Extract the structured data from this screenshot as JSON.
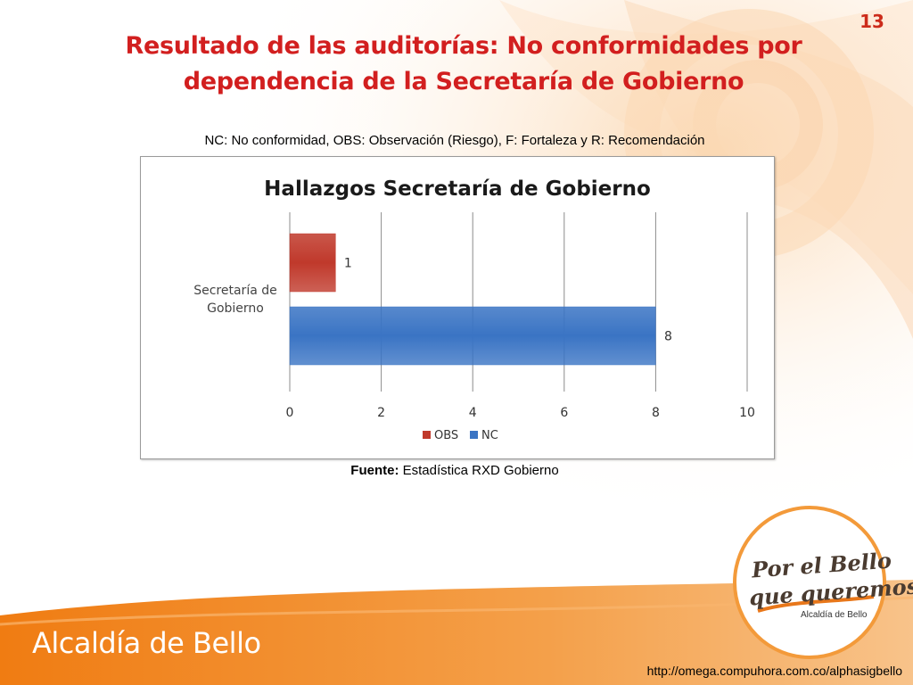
{
  "slide": {
    "number": "13",
    "title_line1": "Resultado de las auditorías: No conformidades por",
    "title_line2": "dependencia de la Secretaría de Gobierno",
    "note": "NC: No conformidad, OBS: Observación (Riesgo), F: Fortaleza y R: Recomendación",
    "source_label": "Fuente:",
    "source_text": " Estadística RXD Gobierno",
    "footer_org": "Alcaldía de Bello",
    "footer_url": "http://omega.compuhora.com.co/alphasigbello",
    "logo_line1": "Por el Bello",
    "logo_line2": "que queremos",
    "logo_sub": "Alcaldía de Bello"
  },
  "colors": {
    "title": "#d21f1f",
    "obs": "#c0392b",
    "nc": "#3a74c4",
    "orange": "#f08a1c"
  },
  "chart_data": {
    "type": "bar",
    "orientation": "horizontal",
    "title": "Hallazgos Secretaría de Gobierno",
    "categories": [
      "Secretaría de Gobierno"
    ],
    "series": [
      {
        "name": "OBS",
        "values": [
          1
        ],
        "color": "#c0392b"
      },
      {
        "name": "NC",
        "values": [
          8
        ],
        "color": "#3a74c4"
      }
    ],
    "xlim": [
      0,
      10
    ],
    "xticks": [
      0,
      2,
      4,
      6,
      8,
      10
    ],
    "grid": true,
    "legend": "bottom",
    "data_labels": true
  }
}
